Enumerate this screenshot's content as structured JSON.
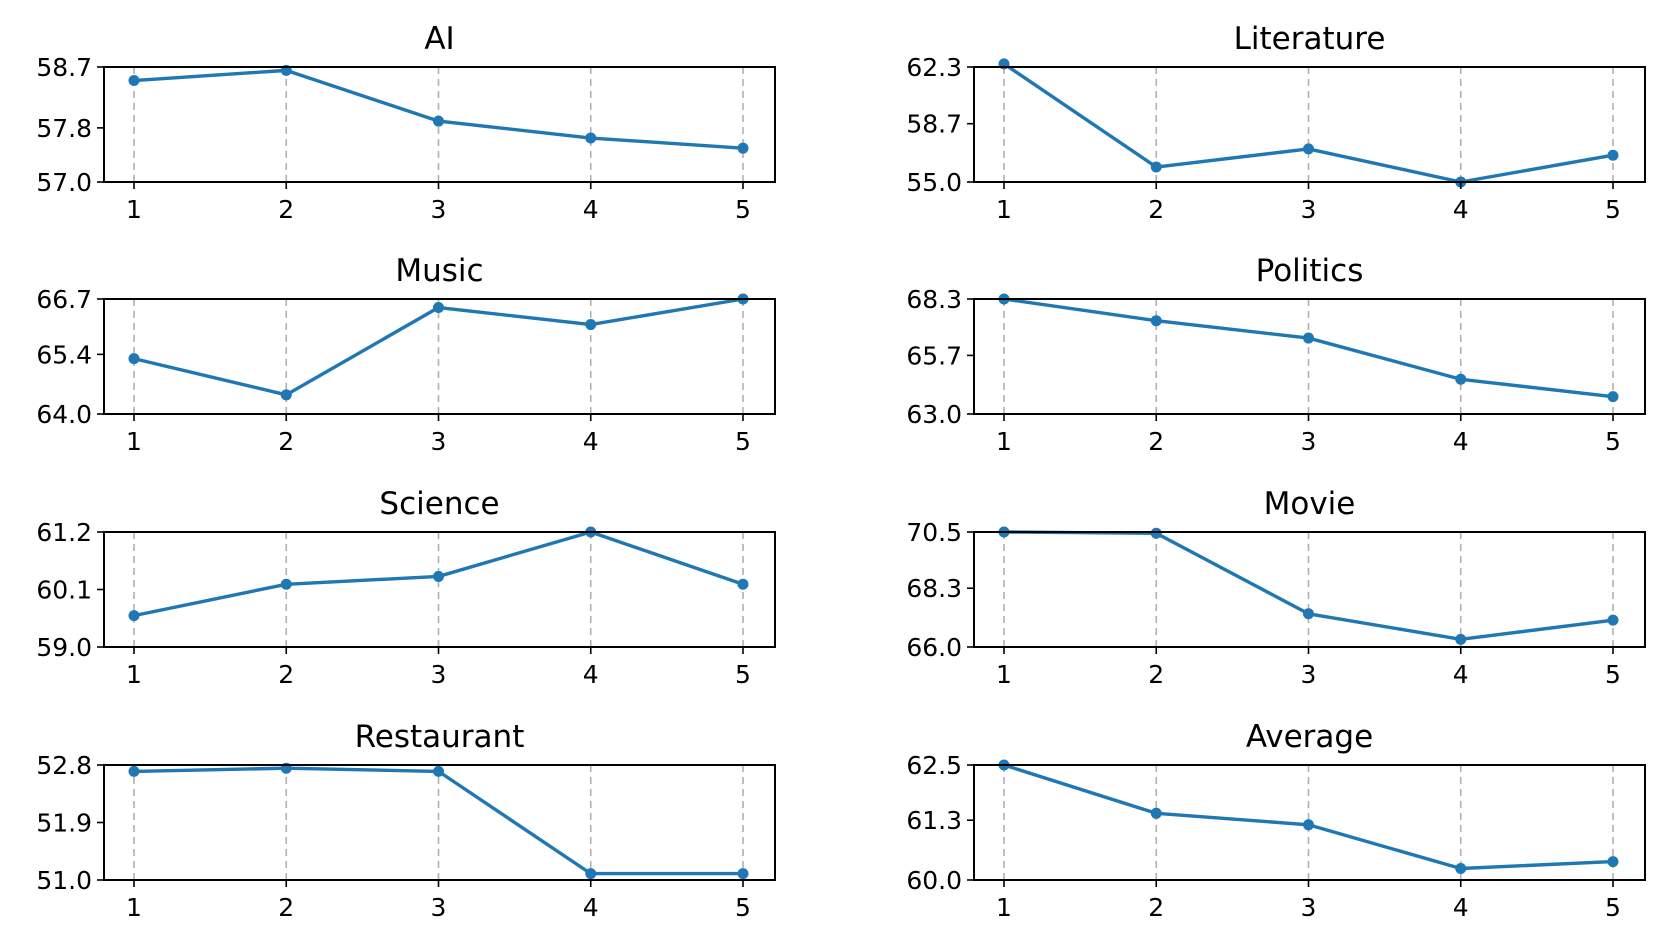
{
  "series_color": "#1f77b4",
  "chart_data": [
    {
      "type": "line",
      "title": "AI",
      "x": [
        1,
        2,
        3,
        4,
        5
      ],
      "values": [
        58.5,
        58.65,
        57.9,
        57.65,
        57.5
      ],
      "ylim": [
        57.0,
        58.7
      ],
      "yticks": [
        "57.0",
        "57.8",
        "58.7"
      ],
      "xticks": [
        "1",
        "2",
        "3",
        "4",
        "5"
      ],
      "grid": "x-dashed"
    },
    {
      "type": "line",
      "title": "Literature",
      "x": [
        1,
        2,
        3,
        4,
        5
      ],
      "values": [
        62.5,
        55.95,
        57.1,
        55.0,
        56.7
      ],
      "ylim": [
        55.0,
        62.3
      ],
      "yticks": [
        "55.0",
        "58.7",
        "62.3"
      ],
      "xticks": [
        "1",
        "2",
        "3",
        "4",
        "5"
      ],
      "grid": "x-dashed"
    },
    {
      "type": "line",
      "title": "Music",
      "x": [
        1,
        2,
        3,
        4,
        5
      ],
      "values": [
        65.3,
        64.45,
        66.5,
        66.1,
        66.7
      ],
      "ylim": [
        64.0,
        66.7
      ],
      "yticks": [
        "64.0",
        "65.4",
        "66.7"
      ],
      "xticks": [
        "1",
        "2",
        "3",
        "4",
        "5"
      ],
      "grid": "x-dashed"
    },
    {
      "type": "line",
      "title": "Politics",
      "x": [
        1,
        2,
        3,
        4,
        5
      ],
      "values": [
        68.3,
        67.3,
        66.5,
        64.6,
        63.8
      ],
      "ylim": [
        63.0,
        68.3
      ],
      "yticks": [
        "63.0",
        "65.7",
        "68.3"
      ],
      "xticks": [
        "1",
        "2",
        "3",
        "4",
        "5"
      ],
      "grid": "x-dashed"
    },
    {
      "type": "line",
      "title": "Science",
      "x": [
        1,
        2,
        3,
        4,
        5
      ],
      "values": [
        59.6,
        60.2,
        60.35,
        61.2,
        60.2
      ],
      "ylim": [
        59.0,
        61.2
      ],
      "yticks": [
        "59.0",
        "60.1",
        "61.2"
      ],
      "xticks": [
        "1",
        "2",
        "3",
        "4",
        "5"
      ],
      "grid": "x-dashed"
    },
    {
      "type": "line",
      "title": "Movie",
      "x": [
        1,
        2,
        3,
        4,
        5
      ],
      "values": [
        70.5,
        70.45,
        67.3,
        66.3,
        67.05
      ],
      "ylim": [
        66.0,
        70.5
      ],
      "yticks": [
        "66.0",
        "68.3",
        "70.5"
      ],
      "xticks": [
        "1",
        "2",
        "3",
        "4",
        "5"
      ],
      "grid": "x-dashed"
    },
    {
      "type": "line",
      "title": "Restaurant",
      "x": [
        1,
        2,
        3,
        4,
        5
      ],
      "values": [
        52.7,
        52.75,
        52.7,
        51.1,
        51.1
      ],
      "ylim": [
        51.0,
        52.8
      ],
      "yticks": [
        "51.0",
        "51.9",
        "52.8"
      ],
      "xticks": [
        "1",
        "2",
        "3",
        "4",
        "5"
      ],
      "grid": "x-dashed"
    },
    {
      "type": "line",
      "title": "Average",
      "x": [
        1,
        2,
        3,
        4,
        5
      ],
      "values": [
        62.5,
        61.45,
        61.2,
        60.25,
        60.4
      ],
      "ylim": [
        60.0,
        62.5
      ],
      "yticks": [
        "60.0",
        "61.3",
        "62.5"
      ],
      "xticks": [
        "1",
        "2",
        "3",
        "4",
        "5"
      ],
      "grid": "x-dashed"
    }
  ]
}
